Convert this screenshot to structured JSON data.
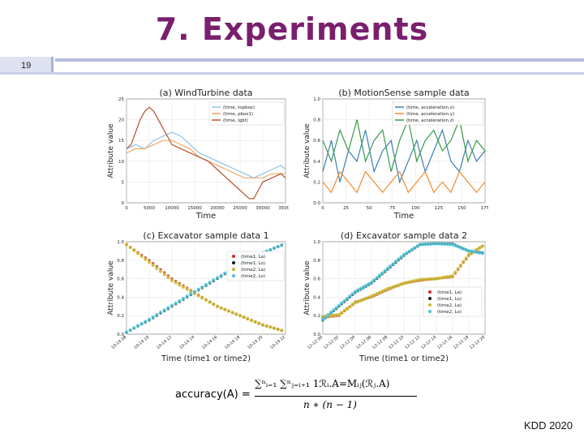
{
  "slide": {
    "title": "7. Experiments",
    "page_number": "19",
    "footer": "KDD 2020",
    "accent": "#7a1f6e"
  },
  "formula": {
    "lhs": "accuracy(A) =",
    "numerator": "∑ⁿᵢ₌₁ ∑ⁿⱼ₌ᵢ₊₁ 1ℛᵢ.A=Mᵢⱼ(ℛⱼ.A)",
    "denominator": "n ∗ (n − 1)"
  },
  "chart_data": [
    {
      "type": "line",
      "title": "(a) WindTurbine data",
      "xlabel": "Time",
      "ylabel": "Attribute value",
      "xlim": [
        0,
        35000
      ],
      "ylim": [
        0,
        25
      ],
      "x_ticks": [
        "0",
        "5000",
        "10000",
        "15000",
        "20000",
        "25000",
        "30000",
        "35000"
      ],
      "y_ticks": [
        "0",
        "5",
        "10",
        "15",
        "20",
        "25"
      ],
      "legend": "top-right",
      "series": [
        {
          "name": "(time, topbox)",
          "color": "#8fc3e0",
          "x": [
            0,
            2000,
            4000,
            6000,
            8000,
            10000,
            12000,
            14000,
            16000,
            18000,
            20000,
            22000,
            24000,
            26000,
            28000,
            30000,
            32000,
            34000,
            35000
          ],
          "values": [
            13,
            14,
            13,
            15,
            16,
            17,
            16,
            14,
            12,
            11,
            10,
            9,
            8,
            7,
            6,
            7,
            8,
            9,
            8
          ]
        },
        {
          "name": "(time, pbox1)",
          "color": "#f0a868",
          "x": [
            0,
            2000,
            4000,
            6000,
            8000,
            10000,
            12000,
            14000,
            16000,
            18000,
            20000,
            22000,
            24000,
            26000,
            28000,
            30000,
            32000,
            34000,
            35000
          ],
          "values": [
            12,
            13,
            13,
            14,
            15,
            15,
            14,
            13,
            11,
            10,
            9,
            8,
            7,
            6,
            6,
            6,
            7,
            7,
            7
          ]
        },
        {
          "name": "(time, igbt)",
          "color": "#b5532b",
          "x": [
            0,
            1000,
            2000,
            3000,
            4000,
            5000,
            6000,
            7000,
            8000,
            9000,
            10000,
            12000,
            14000,
            16000,
            18000,
            20000,
            22000,
            24000,
            26000,
            27000,
            28000,
            29000,
            30000,
            32000,
            34000,
            35000
          ],
          "values": [
            13,
            14,
            17,
            20,
            22,
            23,
            22,
            20,
            18,
            16,
            14,
            13,
            12,
            11,
            10,
            8,
            6,
            4,
            2,
            1,
            1,
            3,
            5,
            6,
            7,
            6
          ]
        }
      ]
    },
    {
      "type": "line",
      "title": "(b) MotionSense sample data",
      "xlabel": "Time",
      "ylabel": "Attribute value",
      "xlim": [
        0,
        190
      ],
      "ylim": [
        0,
        1.0
      ],
      "x_ticks": [
        "0",
        "25",
        "50",
        "75",
        "100",
        "125",
        "150",
        "175"
      ],
      "y_ticks": [
        "0.0",
        "0.2",
        "0.4",
        "0.6",
        "0.8",
        "1.0"
      ],
      "legend": "top-right",
      "series": [
        {
          "name": "(time, acceleration.x)",
          "color": "#3a7fb0",
          "x": [
            0,
            10,
            20,
            30,
            40,
            50,
            60,
            70,
            80,
            90,
            100,
            110,
            120,
            130,
            140,
            150,
            160,
            170,
            180,
            190
          ],
          "values": [
            0.3,
            0.6,
            0.2,
            0.5,
            0.4,
            0.7,
            0.3,
            0.5,
            0.6,
            0.2,
            0.4,
            0.6,
            0.3,
            0.5,
            0.7,
            0.4,
            0.3,
            0.6,
            0.4,
            0.5
          ]
        },
        {
          "name": "(time, acceleration.y)",
          "color": "#f08a30",
          "x": [
            0,
            10,
            20,
            30,
            40,
            50,
            60,
            70,
            80,
            90,
            100,
            110,
            120,
            130,
            140,
            150,
            160,
            170,
            180,
            190
          ],
          "values": [
            0.2,
            0.1,
            0.3,
            0.2,
            0.1,
            0.3,
            0.2,
            0.1,
            0.2,
            0.3,
            0.1,
            0.2,
            0.3,
            0.1,
            0.2,
            0.1,
            0.3,
            0.2,
            0.1,
            0.2
          ]
        },
        {
          "name": "(time, acceleration.z)",
          "color": "#3a9a4a",
          "x": [
            0,
            10,
            20,
            30,
            40,
            50,
            60,
            70,
            80,
            90,
            100,
            110,
            120,
            130,
            140,
            150,
            160,
            170,
            180,
            190
          ],
          "values": [
            0.6,
            0.4,
            0.7,
            0.5,
            0.8,
            0.4,
            0.6,
            0.7,
            0.3,
            0.6,
            0.8,
            0.4,
            0.6,
            0.7,
            0.5,
            0.6,
            0.8,
            0.4,
            0.6,
            0.5
          ]
        }
      ]
    },
    {
      "type": "scatter",
      "title": "(c) Excavator sample data 1",
      "xlabel": "Time (time1 or time2)",
      "ylabel": "Attribute value",
      "ylim": [
        0,
        1.0
      ],
      "x_ticks": [
        "10-14 08",
        "10-14 10",
        "10-14 12",
        "10-14 14",
        "10-14 16",
        "10-14 18",
        "10-14 20",
        "10-14 22"
      ],
      "y_ticks": [
        "0.0",
        "0.2",
        "0.4",
        "0.6",
        "0.8",
        "1.0"
      ],
      "legend": "right",
      "series": [
        {
          "name": "(time1, La)",
          "color": "#d62728",
          "x": [
            0,
            1,
            2,
            3,
            4,
            5,
            6,
            7
          ],
          "values": [
            0.97,
            0.8,
            0.6,
            0.45,
            0.3,
            0.2,
            0.1,
            0.03
          ]
        },
        {
          "name": "(time1, Lo)",
          "color": "#111111",
          "x": [
            0,
            1,
            2,
            3,
            4,
            5,
            6,
            7
          ],
          "values": [
            0.02,
            0.15,
            0.3,
            0.45,
            0.6,
            0.75,
            0.88,
            0.98
          ]
        },
        {
          "name": "(time2, La)",
          "color": "#c8b830",
          "x": [
            0,
            1,
            2,
            3,
            4,
            5,
            6,
            7
          ],
          "values": [
            0.97,
            0.78,
            0.58,
            0.44,
            0.3,
            0.2,
            0.1,
            0.03
          ]
        },
        {
          "name": "(time2, Lo)",
          "color": "#4fc3d6",
          "x": [
            0,
            1,
            2,
            3,
            4,
            5,
            6,
            7
          ],
          "values": [
            0.02,
            0.16,
            0.31,
            0.46,
            0.61,
            0.76,
            0.88,
            0.98
          ]
        }
      ]
    },
    {
      "type": "scatter",
      "title": "(d) Excavator sample data 2",
      "xlabel": "Time (time1 or time2)",
      "ylabel": "Attribute value",
      "ylim": [
        0,
        1.0
      ],
      "x_ticks": [
        "12-12 00",
        "12-12 02",
        "12-12 04",
        "12-12 06",
        "12-12 08",
        "12-12 10",
        "12-12 12",
        "12-12 14",
        "12-12 16",
        "12-12 18",
        "12-12 20"
      ],
      "y_ticks": [
        "0.0",
        "0.2",
        "0.4",
        "0.6",
        "0.8",
        "1.0"
      ],
      "legend": "right",
      "series": [
        {
          "name": "(time1, La)",
          "color": "#d62728",
          "x": [
            0,
            1,
            2,
            3,
            4,
            5,
            6,
            7,
            8,
            9,
            10
          ],
          "values": [
            0.18,
            0.2,
            0.35,
            0.4,
            0.48,
            0.55,
            0.58,
            0.6,
            0.62,
            0.85,
            0.97
          ]
        },
        {
          "name": "(time1, Lo)",
          "color": "#111111",
          "x": [
            0,
            1,
            2,
            3,
            4,
            5,
            6,
            7,
            8,
            9,
            10
          ],
          "values": [
            0.15,
            0.3,
            0.45,
            0.55,
            0.7,
            0.85,
            0.97,
            0.98,
            0.98,
            0.9,
            0.88
          ]
        },
        {
          "name": "(time2, La)",
          "color": "#c8b830",
          "x": [
            0,
            1,
            2,
            3,
            4,
            5,
            6,
            7,
            8,
            9,
            10
          ],
          "values": [
            0.19,
            0.21,
            0.34,
            0.41,
            0.49,
            0.55,
            0.59,
            0.6,
            0.63,
            0.86,
            0.97
          ]
        },
        {
          "name": "(time2, Lo)",
          "color": "#4fc3d6",
          "x": [
            0,
            1,
            2,
            3,
            4,
            5,
            6,
            7,
            8,
            9,
            10
          ],
          "values": [
            0.16,
            0.31,
            0.46,
            0.56,
            0.71,
            0.86,
            0.97,
            0.98,
            0.97,
            0.9,
            0.87
          ]
        }
      ]
    }
  ]
}
